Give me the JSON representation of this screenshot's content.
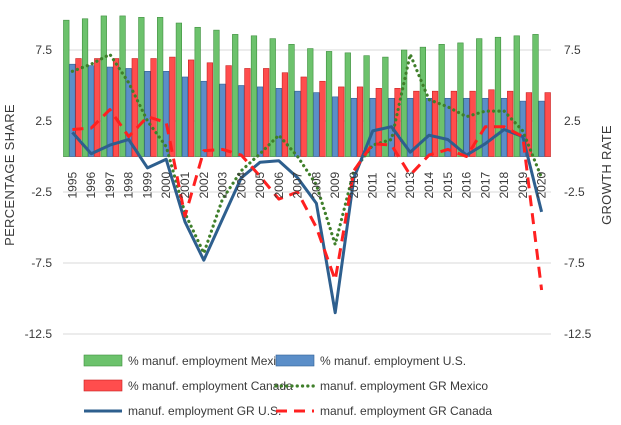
{
  "chart_data": {
    "type": "bar",
    "categories": [
      "1995",
      "1996",
      "1997",
      "1998",
      "1999",
      "2000",
      "2001",
      "2002",
      "2003",
      "2004",
      "2005",
      "2006",
      "2007",
      "2008",
      "2009",
      "2010",
      "2011",
      "2012",
      "2013",
      "2014",
      "2015",
      "2016",
      "2017",
      "2018",
      "2019",
      "2020"
    ],
    "ylabel": "PERCENTAGE SHARE",
    "y2label": "GROWTH RATE",
    "ylim": [
      -12.5,
      10.0
    ],
    "y_ticks": [
      "7.5",
      "2.5",
      "-2.5",
      "-7.5",
      "-12.5"
    ],
    "y2_ticks": [
      "7.5",
      "2.5",
      "-2.5",
      "-7.5",
      "-12.5"
    ],
    "series": [
      {
        "name": "% manuf. employment Mexico",
        "kind": "bar",
        "color": "#6cc26c",
        "values": [
          9.6,
          9.7,
          9.9,
          9.9,
          9.8,
          9.8,
          9.4,
          9.1,
          8.9,
          8.6,
          8.5,
          8.3,
          7.9,
          7.6,
          7.4,
          7.3,
          7.1,
          7.0,
          7.5,
          7.7,
          7.9,
          8.0,
          8.3,
          8.4,
          8.5,
          8.6
        ]
      },
      {
        "name": "% manuf. employment U.S.",
        "kind": "bar",
        "color": "#5b8ec8",
        "values": [
          6.5,
          6.4,
          6.3,
          6.2,
          6.0,
          6.0,
          5.6,
          5.3,
          5.1,
          5.0,
          4.9,
          4.8,
          4.6,
          4.5,
          4.2,
          4.1,
          4.1,
          4.1,
          4.1,
          4.1,
          4.1,
          4.1,
          4.1,
          4.1,
          3.9,
          3.9
        ]
      },
      {
        "name": "% manuf. employment Canada",
        "kind": "bar",
        "color": "#ff4d4d",
        "values": [
          6.9,
          6.9,
          6.9,
          6.9,
          6.9,
          7.0,
          6.8,
          6.6,
          6.4,
          6.2,
          6.2,
          5.9,
          5.6,
          5.3,
          4.9,
          4.9,
          4.8,
          4.8,
          4.6,
          4.6,
          4.6,
          4.6,
          4.7,
          4.6,
          4.5,
          4.5
        ]
      },
      {
        "name": "manuf. employment GR Mexico",
        "kind": "line",
        "style": "dotted",
        "color": "#3f7f2a",
        "values": [
          6.0,
          6.5,
          7.2,
          5.2,
          2.5,
          0.7,
          -4.0,
          -6.8,
          -3.0,
          -1.0,
          0.2,
          1.5,
          0.0,
          -2.0,
          -6.2,
          -1.0,
          0.8,
          1.2,
          7.2,
          4.0,
          3.5,
          2.8,
          3.2,
          3.2,
          1.8,
          -1.5
        ]
      },
      {
        "name": "manuf. employment GR U.S.",
        "kind": "line",
        "style": "solid",
        "color": "#2e5f8e",
        "values": [
          1.7,
          0.2,
          0.8,
          1.2,
          -0.8,
          -0.2,
          -4.6,
          -7.3,
          -4.4,
          -1.5,
          -0.4,
          -0.3,
          -1.5,
          -3.3,
          -11.0,
          -1.5,
          1.8,
          2.1,
          0.3,
          1.5,
          1.2,
          0.1,
          0.9,
          1.9,
          1.4,
          -3.9
        ]
      },
      {
        "name": "manuf. employment GR Canada",
        "kind": "line",
        "style": "dashed",
        "color": "#ff2020",
        "values": [
          1.9,
          2.0,
          3.3,
          1.4,
          2.8,
          2.4,
          -4.2,
          0.4,
          0.5,
          0.1,
          -1.4,
          -3.0,
          -2.5,
          -5.0,
          -8.7,
          -1.0,
          0.9,
          0.8,
          -1.3,
          0.1,
          0.5,
          0.0,
          2.1,
          2.1,
          1.4,
          -9.4
        ]
      }
    ],
    "legend_position": "bottom",
    "grid": true
  }
}
